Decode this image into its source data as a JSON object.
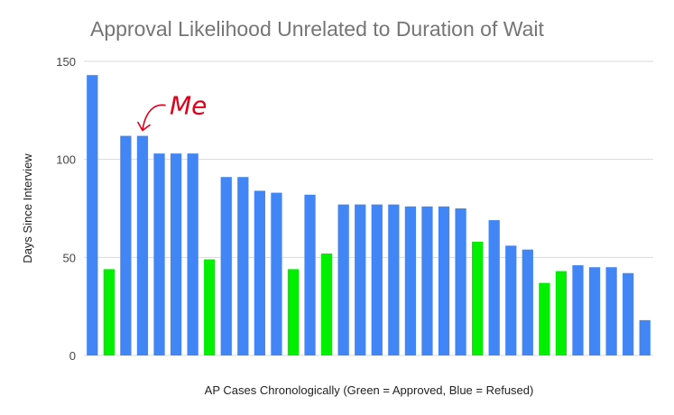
{
  "chart_data": {
    "type": "bar",
    "title": "Approval Likelihood Unrelated to Duration of Wait",
    "xlabel": "AP Cases Chronologically (Green = Approved, Blue = Refused)",
    "ylabel": "Days Since Interview",
    "ylim": [
      0,
      150
    ],
    "yticks": [
      0,
      50,
      100,
      150
    ],
    "grid": true,
    "values": [
      143,
      44,
      112,
      112,
      103,
      103,
      103,
      49,
      91,
      91,
      84,
      83,
      44,
      82,
      52,
      77,
      77,
      77,
      77,
      76,
      76,
      76,
      75,
      58,
      69,
      56,
      54,
      37,
      43,
      46,
      45,
      45,
      42,
      18
    ],
    "outcomes": [
      "refused",
      "approved",
      "refused",
      "refused",
      "refused",
      "refused",
      "refused",
      "approved",
      "refused",
      "refused",
      "refused",
      "refused",
      "approved",
      "refused",
      "approved",
      "refused",
      "refused",
      "refused",
      "refused",
      "refused",
      "refused",
      "refused",
      "refused",
      "approved",
      "refused",
      "refused",
      "refused",
      "approved",
      "approved",
      "refused",
      "refused",
      "refused",
      "refused",
      "refused"
    ],
    "colors": {
      "approved": "#00ee00",
      "refused": "#4285f4"
    },
    "annotation": {
      "text": "Me",
      "bar_index": 3,
      "color": "#e0001a"
    }
  }
}
